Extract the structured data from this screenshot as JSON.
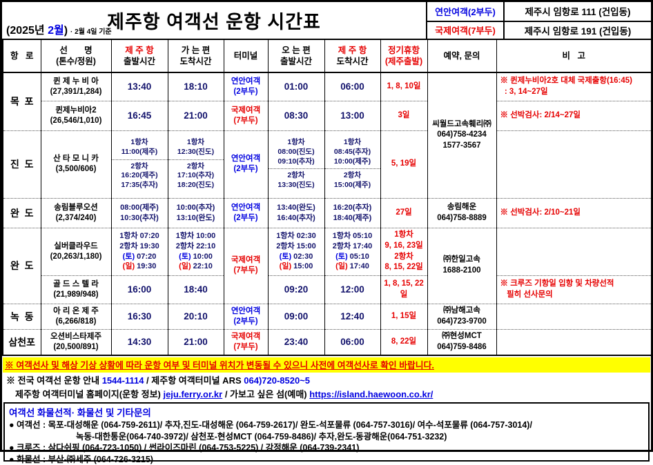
{
  "accent_colors": {
    "red": "#e60000",
    "blue": "#0000e0",
    "navy": "#11116b",
    "highlight": "#ffff00"
  },
  "header": {
    "title": "제주항 여객선 운항 시간표",
    "date_segments": [
      {
        "t": "(2025년 ",
        "c": "k"
      },
      {
        "t": "2월",
        "c": "b"
      },
      {
        "t": ")",
        "c": "k"
      }
    ],
    "date_note": "· 2월 4일 기준",
    "terminals": [
      {
        "name": "연안여객(2부두)",
        "address": "제주시 임항로 111 (건입동)"
      },
      {
        "name": "국제여객(7부두)",
        "address": "제주시 임항로 191 (건입동)"
      }
    ]
  },
  "columns": {
    "route": "항   로",
    "ship": "선       명\n(톤수/정원)",
    "dep_jeju_line1": "제 주 항",
    "dep_jeju_line2": "출발시간",
    "arr_out": "가 는 편\n도착시간",
    "terminal": "터미널",
    "dep_in": "오 는 편\n출발시간",
    "arr_jeju_line1": "제 주 항",
    "arr_jeju_line2": "도착시간",
    "holiday": "정기휴항\n(제주출발)",
    "contact": "예약, 문의",
    "note": "비   고"
  },
  "rows": {
    "mokpo_route": "목  포",
    "queen1": {
      "ship": "퀸 제 누 비 아\n(27,391/1,284)",
      "dep": "13:40",
      "arr": "18:10",
      "terminal": "연안여객\n(2부두)",
      "ret_dep": "01:00",
      "ret_arr": "06:00",
      "holiday": "1, 8, 10일",
      "note": "※ 퀸제누비아2호 대체 국제출항(16:45)\n  : 3, 14~27일"
    },
    "queen2": {
      "ship": "퀸제누비아2\n(26,546/1,010)",
      "dep": "16:45",
      "arr": "21:00",
      "terminal": "국제여객\n(7부두)",
      "ret_dep": "08:30",
      "ret_arr": "13:00",
      "holiday": "3일",
      "note": "※ 선박검사: 2/14~27일"
    },
    "seaworld_contact": "씨월드고속훼리㈜\n064)758-4234\n1577-3567",
    "jindo": {
      "route": "진  도",
      "ship": "산 타 모 니 카\n(3,500/606)",
      "dep1": "1항차\n11:00(제주)",
      "dep2": "2항차\n16:20(제주)\n17:35(추자)",
      "arr1": "1항차\n12:30(진도)",
      "arr2": "2항차\n17:10(추자)\n18:20(진도)",
      "terminal": "연안여객\n(2부두)",
      "ret_dep1": "1항차\n08:00(진도)\n09:10(추자)",
      "ret_dep2": "2항차\n13:30(진도)",
      "ret_arr1": "1항차\n08:45(추자)\n10:00(제주)",
      "ret_arr2": "2항차\n15:00(제주)",
      "holiday": "5, 19일"
    },
    "wando1": {
      "route": "완  도",
      "ship": "송림블루오션\n(2,374/240)",
      "dep": "08:00(제주)\n10:30(추자)",
      "arr": "10:00(추자)\n13:10(완도)",
      "terminal": "연안여객\n(2부두)",
      "ret_dep": "13:40(완도)\n16:40(추자)",
      "ret_arr": "16:20(추자)\n18:40(제주)",
      "holiday": "27일",
      "contact": "송림해운\n064)758-8889",
      "note": "※ 선박검사: 2/10~21일"
    },
    "wando2_route": "완  도",
    "silver": {
      "ship": "실버클라우드\n(20,263/1,180)",
      "dep_line1": "1항차 07:20",
      "dep_line2": "2항차 19:30",
      "dep_line3": [
        {
          "t": "(토)",
          "c": "b"
        },
        {
          "t": " 07:20",
          "c": "n"
        }
      ],
      "dep_line4": [
        {
          "t": "(일)",
          "c": "r"
        },
        {
          "t": " 19:30",
          "c": "n"
        }
      ],
      "arr_line1": "1항차 10:00",
      "arr_line2": "2항차 22:10",
      "arr_line3": [
        {
          "t": "(토)",
          "c": "b"
        },
        {
          "t": " 10:00",
          "c": "n"
        }
      ],
      "arr_line4": [
        {
          "t": "(일)",
          "c": "r"
        },
        {
          "t": " 22:10",
          "c": "n"
        }
      ],
      "terminal": "국제여객\n(7부두)",
      "ret_dep_line1": "1항차 02:30",
      "ret_dep_line2": "2항차 15:00",
      "ret_dep_line3": [
        {
          "t": "(토)",
          "c": "b"
        },
        {
          "t": " 02:30",
          "c": "n"
        }
      ],
      "ret_dep_line4": [
        {
          "t": "(일)",
          "c": "r"
        },
        {
          "t": " 15:00",
          "c": "n"
        }
      ],
      "ret_arr_line1": "1항차 05:10",
      "ret_arr_line2": "2항차 17:40",
      "ret_arr_line3": [
        {
          "t": "(토)",
          "c": "b"
        },
        {
          "t": " 05:10",
          "c": "n"
        }
      ],
      "ret_arr_line4": [
        {
          "t": "(일)",
          "c": "r"
        },
        {
          "t": " 17:40",
          "c": "n"
        }
      ],
      "holiday": "1항차\n9, 16, 23일\n2항차\n8, 15, 22일"
    },
    "hanil_contact": "㈜한일고속\n1688-2100",
    "gold": {
      "ship": "골 드 스 텔 라\n(21,989/948)",
      "dep": "16:00",
      "arr": "18:40",
      "ret_dep": "09:20",
      "ret_arr": "12:00",
      "holiday": "1, 8, 15, 22일",
      "note": "※ 크루즈 기항일 입항 및 차량선적\n   필히 선사문의"
    },
    "nokdong": {
      "route": "녹  동",
      "ship": "아 리 온 제 주\n(6,266/818)",
      "dep": "16:30",
      "arr": "20:10",
      "terminal": "연안여객\n(2부두)",
      "ret_dep": "09:00",
      "ret_arr": "12:40",
      "holiday": "1, 15일",
      "contact": "㈜남해고속\n064)723-9700"
    },
    "samcheonpo": {
      "route": "삼천포",
      "ship": "오션비스타제주\n(20,500/891)",
      "dep": "14:30",
      "arr": "21:00",
      "terminal": "국제여객\n(7부두)",
      "ret_dep": "23:40",
      "ret_arr": "06:00",
      "holiday": "8, 22일",
      "contact": "㈜현성MCT\n064)759-8486"
    }
  },
  "notices": {
    "warning": "※ 여객선사 및 해상 기상 상황에 따라 운항 여부 및 터미널 위치가 변동될 수 있으니 사전에 여객선사로 확인 바랍니다.",
    "info1": [
      {
        "t": "※  전국 여객선 운항 안내 ",
        "c": "k"
      },
      {
        "t": "1544-1114",
        "c": "b"
      },
      {
        "t": " / 제주항 여객터미널 ARS ",
        "c": "k"
      },
      {
        "t": "064)720-8520~5",
        "c": "b"
      }
    ],
    "info2": [
      {
        "t": "제주항 여객터미널 홈페이지(운항 정보) ",
        "c": "k"
      },
      {
        "t": "jeju.ferry.or.kr",
        "c": "b",
        "u": 1
      },
      {
        "t": " / 가보고 싶은 섬(예매) ",
        "c": "k"
      },
      {
        "t": "https://island.haewoon.co.kr/",
        "c": "b",
        "u": 1
      }
    ]
  },
  "footer": {
    "title": "여객선 화물선적· 화물선 및 기타문의",
    "lines": [
      "● 여객선 : 목포-대성해운 (064-759-2611)/ 추자,진도-대성해운 (064-759-2617)/ 완도-석포물류 (064-757-3016)/ 여수-석포물류 (064-757-3014)/",
      "녹동-대한통운(064-740-3972)/ 삼천포-현성MCT (064-759-8486)/ 추자,완도-동광해운(064-751-3232)",
      "● 크루즈 : 삼다쉬핑 (064-723-1050) / 썬라이즈마린 (064-753-5225) / 강정해운 (064-739-2341)",
      "● 화물선 : 부산-㈜세주 (064-726-3215)"
    ]
  }
}
